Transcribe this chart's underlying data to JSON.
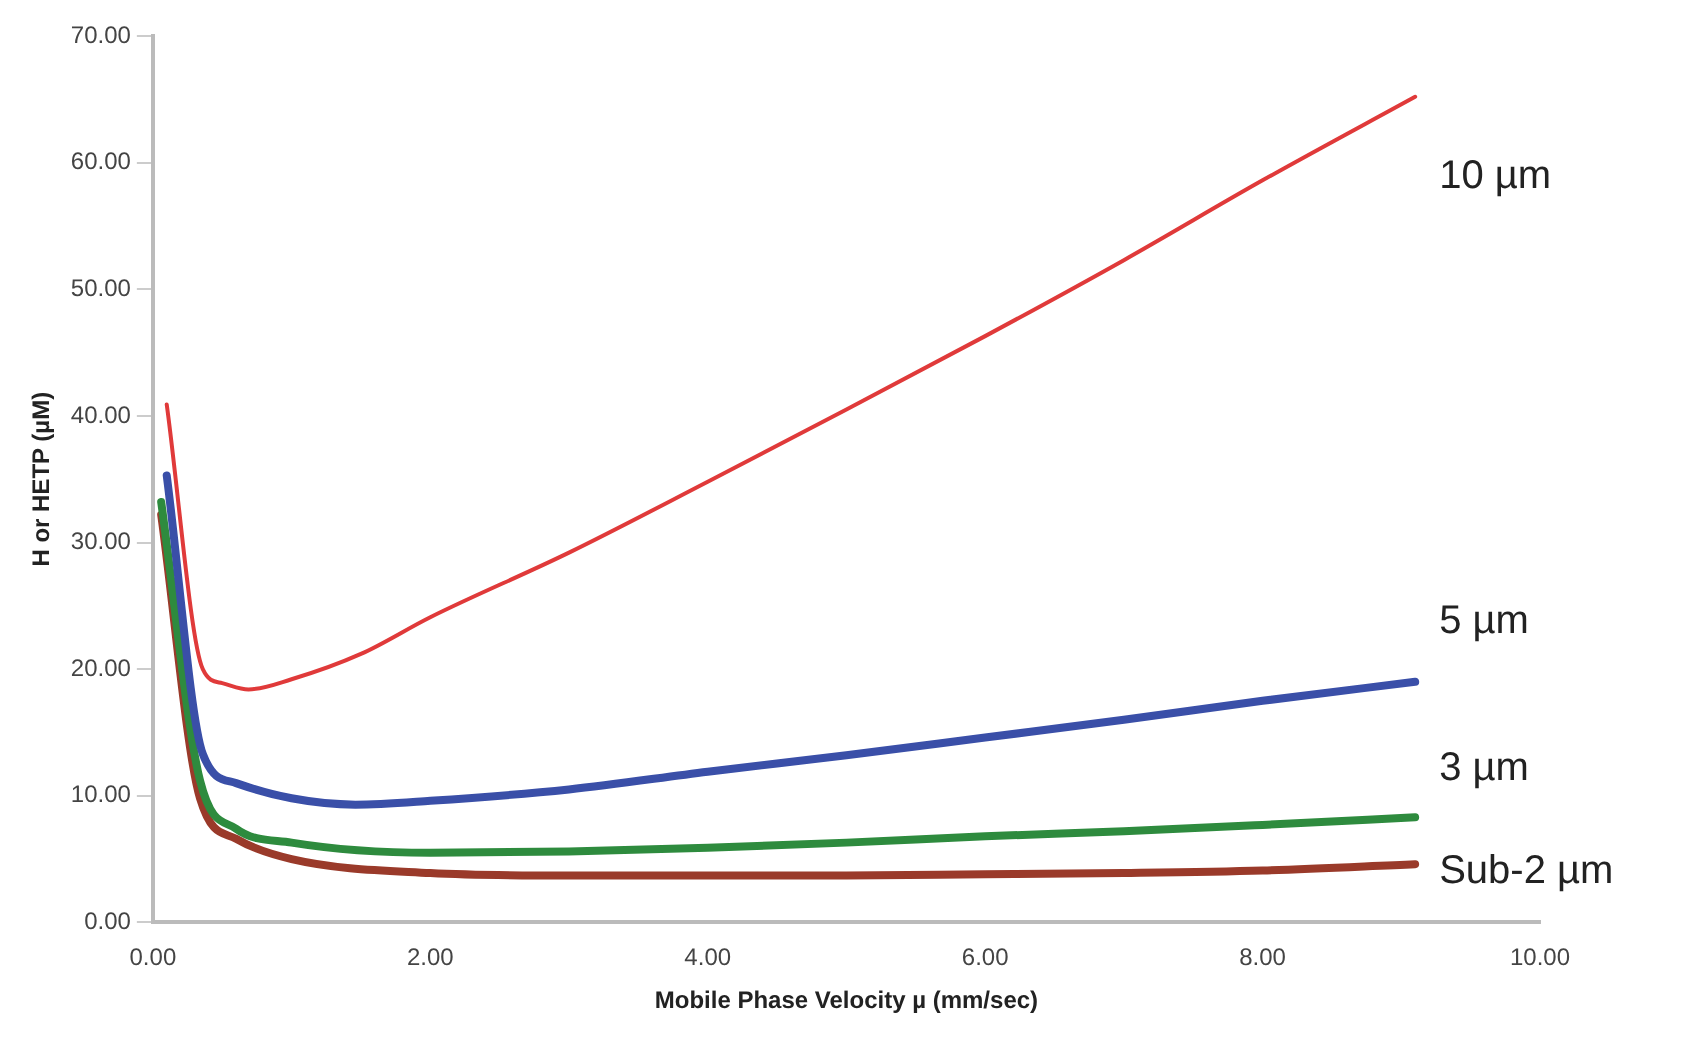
{
  "chart_data": {
    "type": "line",
    "xlabel": "Mobile Phase Velocity µ (mm/sec)",
    "ylabel": "H or HETP (µM)",
    "xlim": [
      0,
      10
    ],
    "xticks": [
      {
        "value": 0,
        "label": "0.00"
      },
      {
        "value": 2,
        "label": "2.00"
      },
      {
        "value": 4,
        "label": "4.00"
      },
      {
        "value": 6,
        "label": "6.00"
      },
      {
        "value": 8,
        "label": "8.00"
      },
      {
        "value": 10,
        "label": "10.00"
      }
    ],
    "ylim": [
      0,
      70
    ],
    "yticks": [
      {
        "value": 0,
        "label": "0.00"
      },
      {
        "value": 10,
        "label": "10.00"
      },
      {
        "value": 20,
        "label": "20.00"
      },
      {
        "value": 30,
        "label": "30.00"
      },
      {
        "value": 40,
        "label": "40.00"
      },
      {
        "value": 50,
        "label": "50.00"
      },
      {
        "value": 60,
        "label": "60.00"
      },
      {
        "value": 70,
        "label": "70.00"
      }
    ],
    "grid": false,
    "legend": false,
    "marker": "none",
    "line_style": "solid",
    "series": [
      {
        "name": "10 µm",
        "color": "#e03a3a",
        "x": [
          0.1,
          0.36,
          0.5,
          0.69,
          1.0,
          1.5,
          2,
          3,
          4,
          5,
          6,
          7,
          8,
          9.1
        ],
        "values": [
          40.9,
          20.0,
          18.9,
          18.4,
          19.2,
          21.2,
          24.1,
          29.2,
          34.8,
          40.5,
          46.3,
          52.3,
          58.6,
          65.2
        ]
      },
      {
        "name": "5 µm",
        "color": "#3a4fa8",
        "x": [
          0.1,
          0.36,
          0.6,
          1.0,
          1.46,
          2,
          3,
          4,
          5,
          6,
          7,
          8,
          9.1
        ],
        "values": [
          35.3,
          13.3,
          11.0,
          9.8,
          9.3,
          9.6,
          10.5,
          11.9,
          13.2,
          14.6,
          16.0,
          17.5,
          19.0
        ]
      },
      {
        "name": "3 µm",
        "color": "#2e8b3e",
        "x": [
          0.06,
          0.34,
          0.6,
          1.0,
          2,
          3,
          4,
          5,
          6,
          7,
          8,
          9.1
        ],
        "values": [
          33.2,
          11.2,
          7.4,
          6.3,
          5.5,
          5.6,
          5.9,
          6.3,
          6.8,
          7.2,
          7.7,
          8.3
        ]
      },
      {
        "name": "Sub-2 µm",
        "color": "#9a3a2a",
        "x": [
          0.06,
          0.34,
          0.6,
          1.0,
          2,
          3,
          4,
          5,
          6,
          7,
          8,
          9.1
        ],
        "values": [
          32.2,
          9.8,
          6.6,
          5.0,
          3.9,
          3.7,
          3.7,
          3.7,
          3.8,
          3.9,
          4.1,
          4.6
        ]
      }
    ]
  }
}
